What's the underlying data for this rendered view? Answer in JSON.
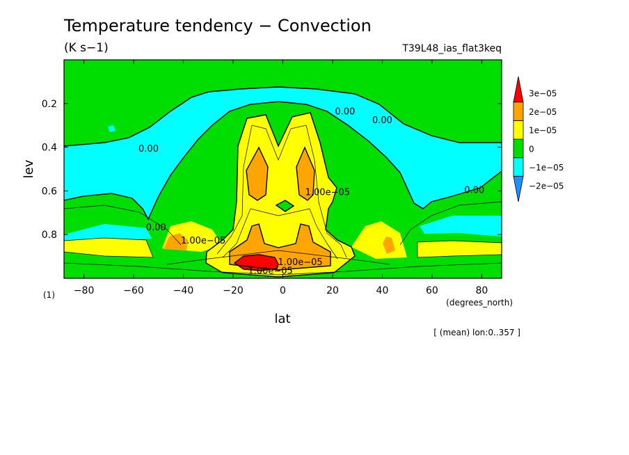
{
  "chart_data": {
    "type": "heatmap",
    "title": "Temperature tendency − Convection",
    "units": "(K s−1)",
    "experiment": "T39L48_ias_flat3keq",
    "xlabel": "lat",
    "xunits": "(degrees_north)",
    "ylabel": "lev",
    "yunits": "(1)",
    "xlim": [
      -88,
      88
    ],
    "ylim": [
      1.0,
      0.0
    ],
    "x_ticks": [
      -80,
      -60,
      -40,
      -20,
      0,
      20,
      40,
      60,
      80
    ],
    "x_tick_labels": [
      "−80",
      "−60",
      "−40",
      "−20",
      "0",
      "20",
      "40",
      "60",
      "80"
    ],
    "y_ticks": [
      0.2,
      0.4,
      0.6,
      0.8
    ],
    "y_tick_labels": [
      "0.2",
      "0.4",
      "0.6",
      "0.8"
    ],
    "footnote": "[ (mean) lon:0..357 ]",
    "colorbar": {
      "levels": [
        -2e-05,
        -1e-05,
        0,
        1e-05,
        2e-05,
        3e-05
      ],
      "labels": [
        "−2e−05",
        "−1e−05",
        "0",
        "1e−05",
        "2e−05",
        "3e−05"
      ],
      "colors": [
        "#1e90ff",
        "#00ffff",
        "#00dd00",
        "#ffff00",
        "#ffa500",
        "#ff0000"
      ]
    },
    "contour_labels": [
      {
        "text": "0.00",
        "lat": -54,
        "lev": 0.42
      },
      {
        "text": "0.00",
        "lat": -51,
        "lev": 0.78
      },
      {
        "text": "0.00",
        "lat": 25,
        "lev": 0.25
      },
      {
        "text": "0.00",
        "lat": 40,
        "lev": 0.29
      },
      {
        "text": "0.00",
        "lat": 77,
        "lev": 0.61
      },
      {
        "text": "1.00e−05",
        "lat": 18,
        "lev": 0.62
      },
      {
        "text": "1.00e−05",
        "lat": -32,
        "lev": 0.84
      },
      {
        "text": "1.00e−05",
        "lat": 7,
        "lev": 0.94
      },
      {
        "text": "1.00e−05",
        "lat": -5,
        "lev": 0.98
      }
    ]
  }
}
